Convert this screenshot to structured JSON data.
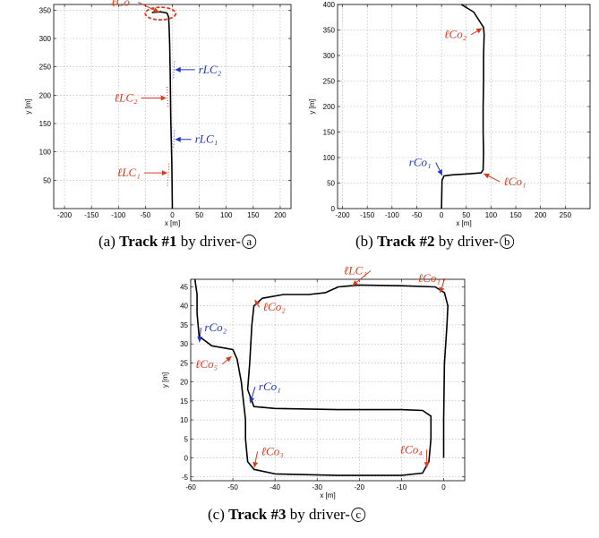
{
  "colors": {
    "red": "#d93a1c",
    "blue": "#1a35c9",
    "path": "#000000",
    "grid": "#9a9a9a"
  },
  "chart_data": [
    {
      "type": "line",
      "caption": {
        "prefix": "(a) ",
        "bold": "Track #1",
        "suffix": " by driver-",
        "circled": "a"
      },
      "xlabel": "x [m]",
      "ylabel": "y [m]",
      "xlim": [
        -220,
        220
      ],
      "ylim": [
        0,
        360
      ],
      "xticks": [
        -200,
        -150,
        -100,
        -50,
        0,
        50,
        100,
        150,
        200
      ],
      "yticks": [
        50,
        100,
        150,
        200,
        250,
        300,
        350
      ],
      "grid": true,
      "series": [
        {
          "points": [
            [
              0,
              0
            ],
            [
              -0.5,
              40
            ],
            [
              -1,
              80
            ],
            [
              -2,
              120
            ],
            [
              -3,
              160
            ],
            [
              -3.5,
              200
            ],
            [
              -4,
              240
            ],
            [
              -5,
              290
            ],
            [
              -6,
              320
            ],
            [
              -7,
              338
            ],
            [
              -10,
              345
            ],
            [
              -22,
              347
            ],
            [
              -38,
              346
            ]
          ]
        }
      ],
      "annotations": [
        {
          "text": "ℓCo",
          "color": "red",
          "target": [
            -22,
            345
          ]
        },
        {
          "text": "rLC₂",
          "color": "blue",
          "target": [
            2,
            245
          ]
        },
        {
          "text": "ℓLC₂",
          "color": "red",
          "target": [
            -8,
            195
          ]
        },
        {
          "text": "rLC₁",
          "color": "blue",
          "target": [
            2,
            122
          ]
        },
        {
          "text": "ℓLC₁",
          "color": "red",
          "target": [
            -6,
            63
          ]
        }
      ]
    },
    {
      "type": "line",
      "caption": {
        "prefix": "(b) ",
        "bold": "Track #2",
        "suffix": " by driver-",
        "circled": "b"
      },
      "xlabel": "x [m]",
      "ylabel": "y [m]",
      "xlim": [
        -210,
        300
      ],
      "ylim": [
        0,
        400
      ],
      "xticks": [
        -200,
        -150,
        -100,
        -50,
        0,
        50,
        100,
        150,
        200,
        250
      ],
      "yticks": [
        0,
        50,
        100,
        150,
        200,
        250,
        300,
        350,
        400
      ],
      "grid": true,
      "series": [
        {
          "points": [
            [
              0,
              0
            ],
            [
              1,
              55
            ],
            [
              5,
              64
            ],
            [
              20,
              66
            ],
            [
              55,
              68
            ],
            [
              80,
              70
            ],
            [
              84,
              76
            ],
            [
              85,
              110
            ],
            [
              84,
              150
            ],
            [
              84,
              200
            ],
            [
              85,
              250
            ],
            [
              85,
              300
            ],
            [
              86,
              340
            ],
            [
              85,
              355
            ],
            [
              65,
              385
            ],
            [
              40,
              400
            ]
          ]
        }
      ],
      "annotations": [
        {
          "text": "rCo₁",
          "color": "blue",
          "target": [
            3,
            62
          ]
        },
        {
          "text": "ℓCo₁",
          "color": "red",
          "target": [
            82,
            70
          ]
        },
        {
          "text": "ℓCo₂",
          "color": "red",
          "target": [
            85,
            355
          ]
        }
      ]
    },
    {
      "type": "line",
      "caption": {
        "prefix": "(c) ",
        "bold": "Track #3",
        "suffix": " by driver-",
        "circled": "c"
      },
      "xlabel": "x [m]",
      "ylabel": "y [m]",
      "xlim": [
        -60,
        5
      ],
      "ylim": [
        -6,
        47
      ],
      "xticks": [
        -60,
        -50,
        -40,
        -30,
        -20,
        -10,
        0
      ],
      "yticks": [
        -5,
        0,
        5,
        10,
        15,
        20,
        25,
        30,
        35,
        40,
        45
      ],
      "grid": true,
      "series": [
        {
          "points": [
            [
              0,
              0
            ],
            [
              0,
              10
            ],
            [
              0.2,
              25
            ],
            [
              0.8,
              35
            ],
            [
              1,
              40
            ],
            [
              0.2,
              43.5
            ],
            [
              -2,
              45
            ],
            [
              -10,
              45.3
            ],
            [
              -20,
              45.5
            ],
            [
              -25,
              45
            ],
            [
              -28,
              43.5
            ],
            [
              -32,
              43
            ],
            [
              -38,
              43
            ],
            [
              -43,
              42
            ],
            [
              -45,
              40
            ],
            [
              -45.5,
              35
            ],
            [
              -46,
              25
            ],
            [
              -46.5,
              18
            ],
            [
              -45,
              13.5
            ],
            [
              -40,
              13
            ],
            [
              -25,
              12.7
            ],
            [
              -10,
              12.7
            ],
            [
              -5,
              12.5
            ],
            [
              -3,
              11
            ],
            [
              -3,
              5
            ],
            [
              -3.5,
              -1
            ],
            [
              -5,
              -4
            ],
            [
              -10,
              -4.6
            ],
            [
              -25,
              -4.6
            ],
            [
              -40,
              -4.2
            ],
            [
              -45,
              -3
            ],
            [
              -46.5,
              -1
            ],
            [
              -47,
              5
            ],
            [
              -47,
              10
            ],
            [
              -48,
              20
            ],
            [
              -49,
              26
            ],
            [
              -50,
              28.5
            ],
            [
              -55,
              29.5
            ],
            [
              -58,
              32
            ],
            [
              -58.5,
              38
            ],
            [
              -58.5,
              43
            ],
            [
              -59,
              47
            ]
          ]
        }
      ],
      "annotations": [
        {
          "text": "rCo₂",
          "color": "blue",
          "target": [
            -58,
            30
          ]
        },
        {
          "text": "ℓCo₂",
          "color": "red",
          "target": [
            -45,
            42
          ]
        },
        {
          "text": "ℓLC₁",
          "color": "red",
          "target": [
            -22,
            45
          ]
        },
        {
          "text": "ℓCo₁",
          "color": "red",
          "target": [
            -1,
            43
          ]
        },
        {
          "text": "ℓCo₅",
          "color": "red",
          "target": [
            -50,
            27
          ]
        },
        {
          "text": "rCo₁",
          "color": "blue",
          "target": [
            -46,
            14
          ]
        },
        {
          "text": "ℓCo₃",
          "color": "red",
          "target": [
            -45,
            -3
          ]
        },
        {
          "text": "ℓCo₄",
          "color": "red",
          "target": [
            -4,
            -3
          ]
        }
      ]
    }
  ]
}
